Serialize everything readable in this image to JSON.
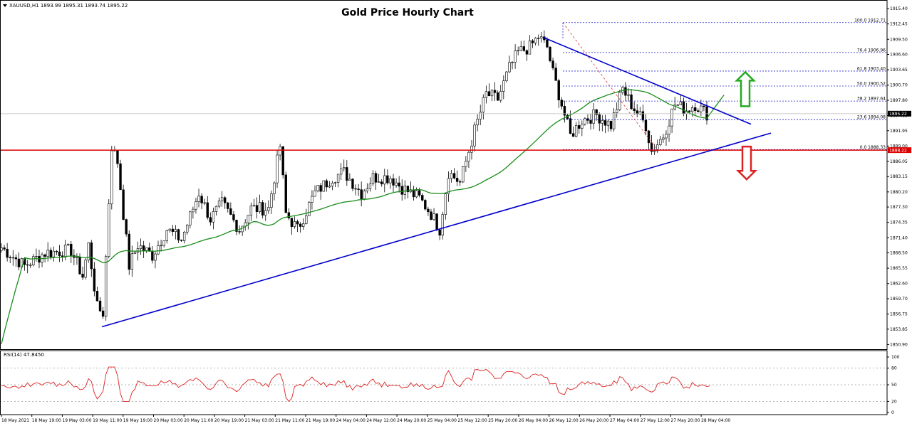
{
  "chart_data": {
    "type": "candlestick",
    "title": "Gold Price Hourly Chart",
    "symbol_header": "XAUUSD,H1  1893.99 1895.31 1893.74 1895.22",
    "current_price": 1895.22,
    "support_price": 1888.22,
    "y_range": [
      1850.0,
      1916.5
    ],
    "y_ticks": [
      "1915.40",
      "1912.45",
      "1909.50",
      "1906.60",
      "1903.65",
      "1900.70",
      "1897.80",
      "1894.85",
      "1891.95",
      "1889.00",
      "1886.05",
      "1883.15",
      "1880.20",
      "1877.30",
      "1874.35",
      "1871.40",
      "1868.50",
      "1865.55",
      "1862.60",
      "1859.70",
      "1856.75",
      "1853.85",
      "1850.90"
    ],
    "x_labels": [
      "18 May 2021",
      "18 May 19:00",
      "19 May 03:00",
      "19 May 11:00",
      "19 May 19:00",
      "20 May 03:00",
      "20 May 11:00",
      "20 May 19:00",
      "21 May 03:00",
      "21 May 11:00",
      "21 May 19:00",
      "24 May 04:00",
      "24 May 12:00",
      "24 May 20:00",
      "25 May 04:00",
      "25 May 12:00",
      "25 May 20:00",
      "26 May 04:00",
      "26 May 12:00",
      "26 May 20:00",
      "27 May 04:00",
      "27 May 12:00",
      "27 May 20:00",
      "28 May 04:00"
    ],
    "fibonacci_levels": [
      {
        "label": "100.0 1912.71",
        "price": 1912.71
      },
      {
        "label": "76.4 1906.96",
        "price": 1906.96
      },
      {
        "label": "61.8 1903.40",
        "price": 1903.4
      },
      {
        "label": "50.0 1900.52",
        "price": 1900.52
      },
      {
        "label": "38.2 1897.64",
        "price": 1897.64
      },
      {
        "label": "23.6 1894.08",
        "price": 1894.08
      },
      {
        "label": "0.0 1888.33",
        "price": 1888.33
      }
    ],
    "rsi": {
      "label": "RSI(14) 47.8450",
      "value": 47.845,
      "range": [
        0,
        100
      ],
      "ticks": [
        "100",
        "80",
        "50",
        "20",
        "0"
      ],
      "levels": [
        80,
        50,
        20
      ]
    },
    "annotations": [
      "rising trend line (support)",
      "declining trend line (resistance)",
      "green up arrow",
      "red down arrow",
      "horizontal support line at 1888.22",
      "fibonacci retracement 1912.71 to 1888.33"
    ],
    "colors": {
      "trend_lines": "#0000cc",
      "support_line": "#dd0000",
      "moving_average": "#1a8c1a",
      "fib_lines": "#2222cc",
      "rsi_line": "#dd2222",
      "up_arrow": "#22aa22",
      "down_arrow": "#dd2222"
    }
  }
}
